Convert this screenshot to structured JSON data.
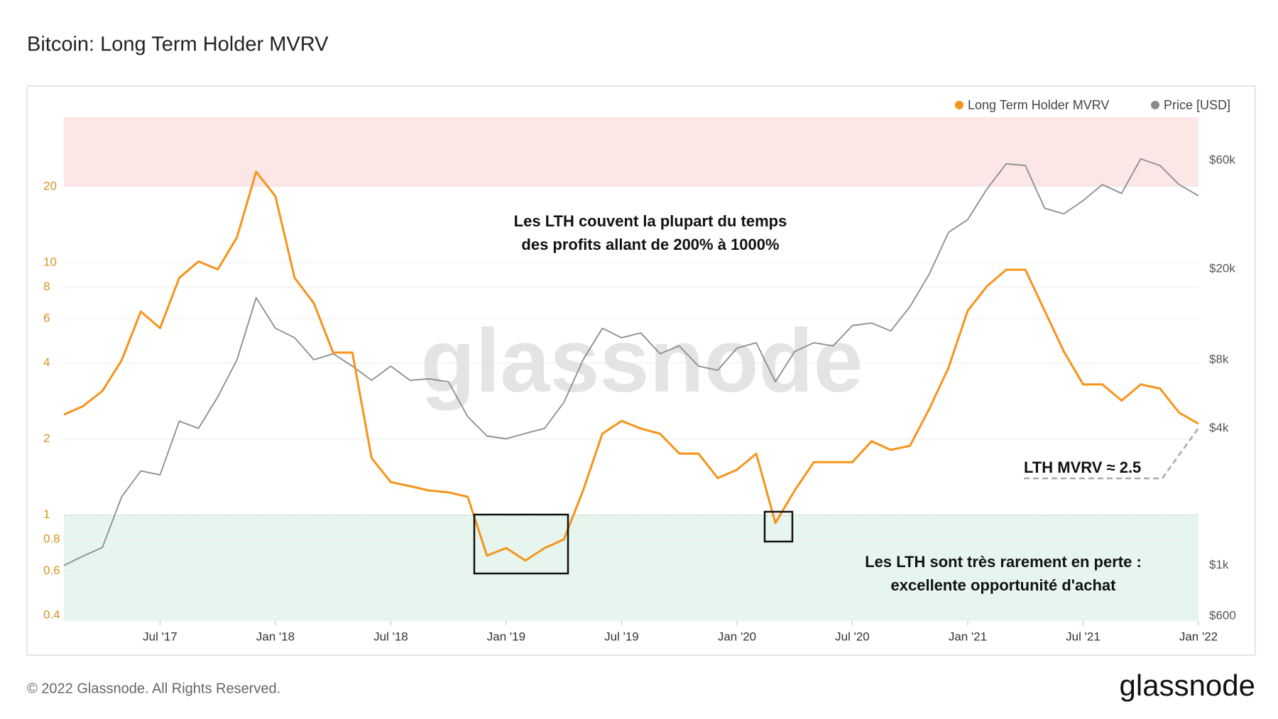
{
  "title": "Bitcoin: Long Term Holder MVRV",
  "footer": "© 2022 Glassnode. All Rights Reserved.",
  "logo": "glassnode",
  "watermark": "glassnode",
  "chart_data": {
    "type": "line",
    "log_scale": true,
    "grid": true,
    "legend": "top-right",
    "x": [
      "2017-02",
      "2017-03",
      "2017-04",
      "2017-05",
      "2017-06",
      "2017-07",
      "2017-08",
      "2017-09",
      "2017-10",
      "2017-11",
      "2017-12",
      "2018-01",
      "2018-02",
      "2018-03",
      "2018-04",
      "2018-05",
      "2018-06",
      "2018-07",
      "2018-08",
      "2018-09",
      "2018-10",
      "2018-11",
      "2018-12",
      "2019-01",
      "2019-02",
      "2019-03",
      "2019-04",
      "2019-05",
      "2019-06",
      "2019-07",
      "2019-08",
      "2019-09",
      "2019-10",
      "2019-11",
      "2019-12",
      "2020-01",
      "2020-02",
      "2020-03",
      "2020-04",
      "2020-05",
      "2020-06",
      "2020-07",
      "2020-08",
      "2020-09",
      "2020-10",
      "2020-11",
      "2020-12",
      "2021-01",
      "2021-02",
      "2021-03",
      "2021-04",
      "2021-05",
      "2021-06",
      "2021-07",
      "2021-08",
      "2021-09",
      "2021-10",
      "2021-11",
      "2021-12",
      "2022-01"
    ],
    "xlim": [
      "2017-02",
      "2022-01"
    ],
    "xticks": [
      {
        "value": "2017-07",
        "label": "Jul '17"
      },
      {
        "value": "2018-01",
        "label": "Jan '18"
      },
      {
        "value": "2018-07",
        "label": "Jul '18"
      },
      {
        "value": "2019-01",
        "label": "Jan '19"
      },
      {
        "value": "2019-07",
        "label": "Jul '19"
      },
      {
        "value": "2020-01",
        "label": "Jan '20"
      },
      {
        "value": "2020-07",
        "label": "Jul '20"
      },
      {
        "value": "2021-01",
        "label": "Jan '21"
      },
      {
        "value": "2021-07",
        "label": "Jul '21"
      },
      {
        "value": "2022-01",
        "label": "Jan '22"
      }
    ],
    "ylim": [
      0.38,
      37.7
    ],
    "yticks": [
      0.4,
      0.6,
      0.8,
      1,
      2,
      4,
      6,
      8,
      10,
      20
    ],
    "y2lim": [
      570,
      93000
    ],
    "y2ticks": [
      {
        "value": 600,
        "label": "$600"
      },
      {
        "value": 1000,
        "label": "$1k"
      },
      {
        "value": 4000,
        "label": "$4k"
      },
      {
        "value": 8000,
        "label": "$8k"
      },
      {
        "value": 20000,
        "label": "$20k"
      },
      {
        "value": 60000,
        "label": "$60k"
      }
    ],
    "bands": [
      {
        "from": 20,
        "color": "#fde6e6"
      },
      {
        "to": 1,
        "color": "#e6f6ee"
      }
    ],
    "series": [
      {
        "name": "Long Term Holder MVRV",
        "color": "#f7931a",
        "values": [
          2.5,
          2.7,
          3.1,
          4.1,
          6.4,
          5.5,
          8.7,
          10.1,
          9.4,
          12.6,
          22.9,
          18.3,
          8.7,
          6.9,
          4.4,
          4.4,
          1.68,
          1.35,
          1.3,
          1.25,
          1.23,
          1.18,
          0.69,
          0.74,
          0.66,
          0.74,
          0.8,
          1.25,
          2.1,
          2.36,
          2.2,
          2.1,
          1.75,
          1.75,
          1.4,
          1.51,
          1.75,
          0.93,
          1.25,
          1.62,
          1.62,
          1.62,
          1.96,
          1.81,
          1.88,
          2.63,
          3.83,
          6.45,
          8.06,
          9.37,
          9.37,
          6.45,
          4.44,
          3.29,
          3.29,
          2.84,
          3.29,
          3.17,
          2.54,
          2.3
        ]
      },
      {
        "name": "Price [USD]",
        "color": "#8c8c8c",
        "axis": "y2",
        "values": [
          1000,
          1100,
          1200,
          2000,
          2600,
          2500,
          4300,
          4000,
          5500,
          8000,
          15000,
          11000,
          10000,
          8000,
          8500,
          7500,
          6500,
          7500,
          6500,
          6600,
          6400,
          4500,
          3700,
          3600,
          3800,
          4000,
          5200,
          8000,
          11000,
          10000,
          10500,
          8500,
          9200,
          7500,
          7200,
          9000,
          9500,
          6400,
          8700,
          9500,
          9200,
          11300,
          11600,
          10700,
          13700,
          19000,
          29000,
          33000,
          45000,
          58000,
          57000,
          37000,
          35000,
          40000,
          47000,
          43000,
          61000,
          57000,
          47000,
          42000
        ]
      }
    ],
    "annotations": [
      "Les LTH couvent la plupart du temps",
      "des profits allant de 200% à 1000%",
      "Les LTH sont très rarement en perte :",
      "excellente opportunité d'achat",
      "LTH MVRV ≈ 2.5"
    ]
  }
}
